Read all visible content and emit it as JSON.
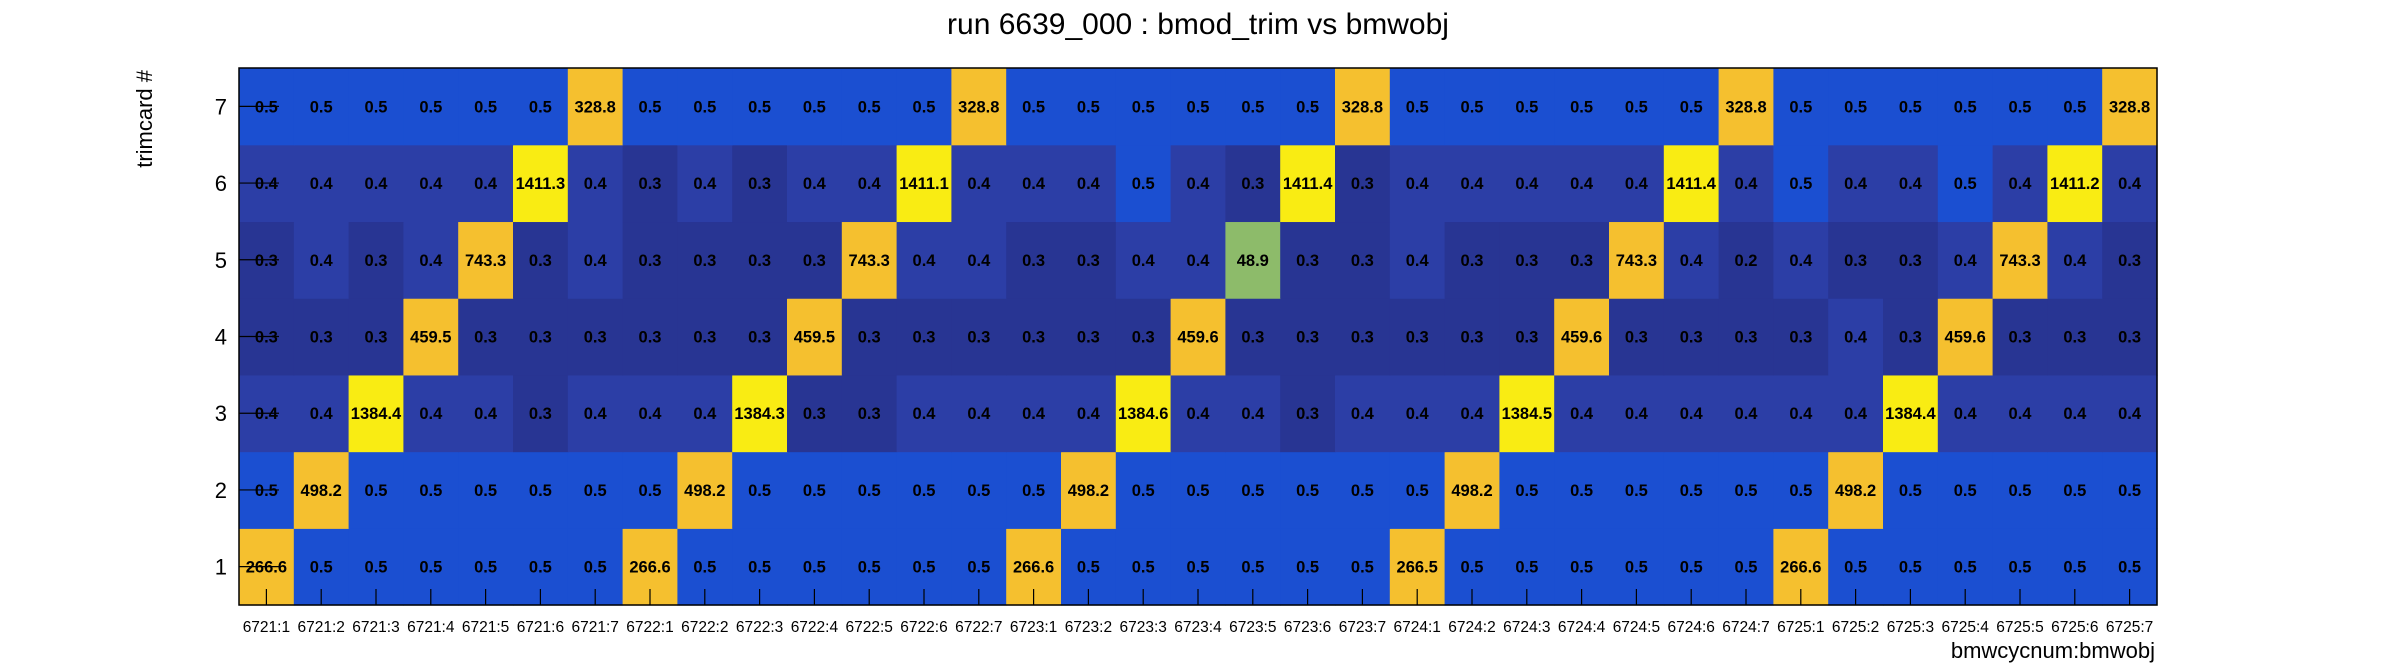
{
  "chart_data": {
    "type": "heatmap",
    "title": "run 6639_000 : bmod_trim vs bmwobj",
    "xlabel": "bmwcycnum:bmwobj",
    "ylabel": "trimcard #",
    "x_categories": [
      "6721:1",
      "6721:2",
      "6721:3",
      "6721:4",
      "6721:5",
      "6721:6",
      "6721:7",
      "6722:1",
      "6722:2",
      "6722:3",
      "6722:4",
      "6722:5",
      "6722:6",
      "6722:7",
      "6723:1",
      "6723:2",
      "6723:3",
      "6723:4",
      "6723:5",
      "6723:6",
      "6723:7",
      "6724:1",
      "6724:2",
      "6724:3",
      "6724:4",
      "6724:5",
      "6724:6",
      "6724:7",
      "6725:1",
      "6725:2",
      "6725:3",
      "6725:4",
      "6725:5",
      "6725:6",
      "6725:7"
    ],
    "y_categories": [
      "1",
      "2",
      "3",
      "4",
      "5",
      "6",
      "7"
    ],
    "values_by_trimcard": {
      "7": [
        0.5,
        0.5,
        0.5,
        0.5,
        0.5,
        0.5,
        328.8,
        0.5,
        0.5,
        0.5,
        0.5,
        0.5,
        0.5,
        328.8,
        0.5,
        0.5,
        0.5,
        0.5,
        0.5,
        0.5,
        328.8,
        0.5,
        0.5,
        0.5,
        0.5,
        0.5,
        0.5,
        328.8,
        0.5,
        0.5,
        0.5,
        0.5,
        0.5,
        0.5,
        328.8
      ],
      "6": [
        0.4,
        0.4,
        0.4,
        0.4,
        0.4,
        1411.3,
        0.4,
        0.3,
        0.4,
        0.3,
        0.4,
        0.4,
        1411.1,
        0.4,
        0.4,
        0.4,
        0.5,
        0.4,
        0.3,
        1411.4,
        0.3,
        0.4,
        0.4,
        0.4,
        0.4,
        0.4,
        1411.4,
        0.4,
        0.5,
        0.4,
        0.4,
        0.5,
        0.4,
        1411.2,
        0.4
      ],
      "5": [
        0.3,
        0.4,
        0.3,
        0.4,
        743.3,
        0.3,
        0.4,
        0.3,
        0.3,
        0.3,
        0.3,
        743.3,
        0.4,
        0.4,
        0.3,
        0.3,
        0.4,
        0.4,
        48.9,
        0.3,
        0.3,
        0.4,
        0.3,
        0.3,
        0.3,
        743.3,
        0.4,
        0.2,
        0.4,
        0.3,
        0.3,
        0.4,
        743.3,
        0.4,
        0.3
      ],
      "4": [
        0.3,
        0.3,
        0.3,
        459.5,
        0.3,
        0.3,
        0.3,
        0.3,
        0.3,
        0.3,
        459.5,
        0.3,
        0.3,
        0.3,
        0.3,
        0.3,
        0.3,
        459.6,
        0.3,
        0.3,
        0.3,
        0.3,
        0.3,
        0.3,
        459.6,
        0.3,
        0.3,
        0.3,
        0.3,
        0.4,
        0.3,
        459.6,
        0.3,
        0.3,
        0.3
      ],
      "3": [
        0.4,
        0.4,
        1384.4,
        0.4,
        0.4,
        0.3,
        0.4,
        0.4,
        0.4,
        1384.3,
        0.3,
        0.3,
        0.4,
        0.4,
        0.4,
        0.4,
        1384.6,
        0.4,
        0.4,
        0.3,
        0.4,
        0.4,
        0.4,
        1384.5,
        0.4,
        0.4,
        0.4,
        0.4,
        0.4,
        0.4,
        1384.4,
        0.4,
        0.4,
        0.4,
        0.4
      ],
      "2": [
        0.5,
        498.2,
        0.5,
        0.5,
        0.5,
        0.5,
        0.5,
        0.5,
        498.2,
        0.5,
        0.5,
        0.5,
        0.5,
        0.5,
        0.5,
        498.2,
        0.5,
        0.5,
        0.5,
        0.5,
        0.5,
        0.5,
        498.2,
        0.5,
        0.5,
        0.5,
        0.5,
        0.5,
        0.5,
        498.2,
        0.5,
        0.5,
        0.5,
        0.5,
        0.5
      ],
      "1": [
        266.6,
        0.5,
        0.5,
        0.5,
        0.5,
        0.5,
        0.5,
        266.6,
        0.5,
        0.5,
        0.5,
        0.5,
        0.5,
        0.5,
        266.6,
        0.5,
        0.5,
        0.5,
        0.5,
        0.5,
        0.5,
        266.5,
        0.5,
        0.5,
        0.5,
        0.5,
        0.5,
        0.5,
        266.6,
        0.5,
        0.5,
        0.5,
        0.5,
        0.5,
        0.5
      ]
    },
    "colors": {
      "low_dark": "#283593",
      "low_mid": "#2c3ea6",
      "low_high": "#1b4fd1",
      "mid_green": "#8dbb6a",
      "high_orange": "#f5c02f",
      "peak_yellow": "#f9ec13",
      "axis": "#000000"
    },
    "grid": false,
    "legend": "none"
  }
}
